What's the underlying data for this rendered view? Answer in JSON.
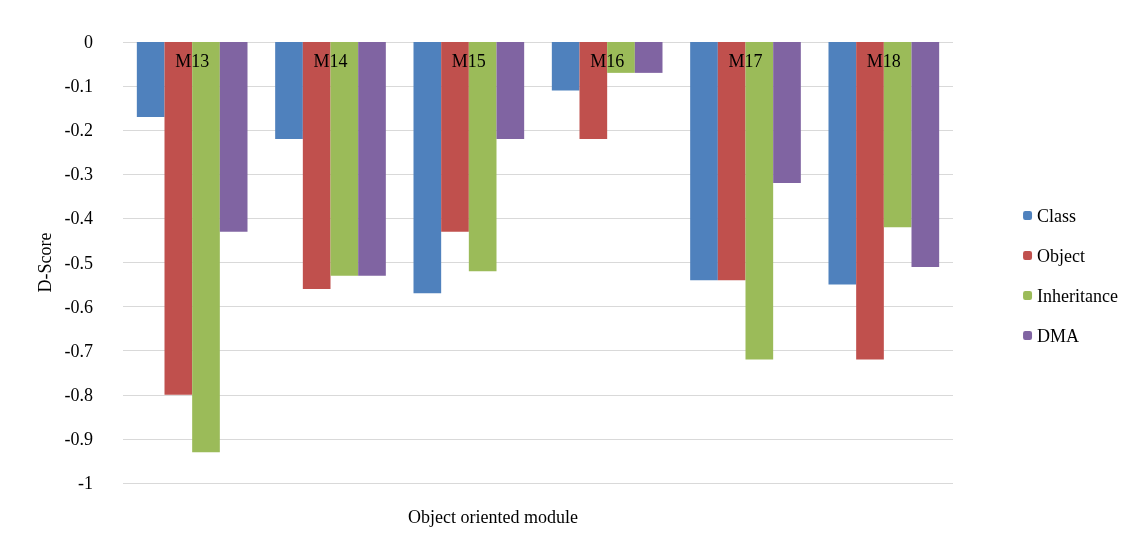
{
  "chart_data": {
    "type": "bar",
    "xlabel": "Object oriented module",
    "ylabel": "D-Score",
    "categories": [
      "M13",
      "M14",
      "M15",
      "M16",
      "M17",
      "M18"
    ],
    "series": [
      {
        "name": "Class",
        "color": "#4f81bd",
        "values": [
          -0.17,
          -0.22,
          -0.57,
          -0.11,
          -0.54,
          -0.55
        ]
      },
      {
        "name": "Object",
        "color": "#c0504d",
        "values": [
          -0.8,
          -0.56,
          -0.43,
          -0.22,
          -0.54,
          -0.72
        ]
      },
      {
        "name": "Inheritance",
        "color": "#9bbb59",
        "values": [
          -0.93,
          -0.53,
          -0.52,
          -0.07,
          -0.72,
          -0.42
        ]
      },
      {
        "name": "DMA",
        "color": "#8064a2",
        "values": [
          -0.43,
          -0.53,
          -0.22,
          -0.07,
          -0.32,
          -0.51
        ]
      }
    ],
    "ylim": [
      -1,
      0
    ],
    "yticks": [
      0,
      -0.1,
      -0.2,
      -0.3,
      -0.4,
      -0.5,
      -0.6,
      -0.7,
      -0.8,
      -0.9,
      -1
    ],
    "grid": "y",
    "legend": "right"
  }
}
